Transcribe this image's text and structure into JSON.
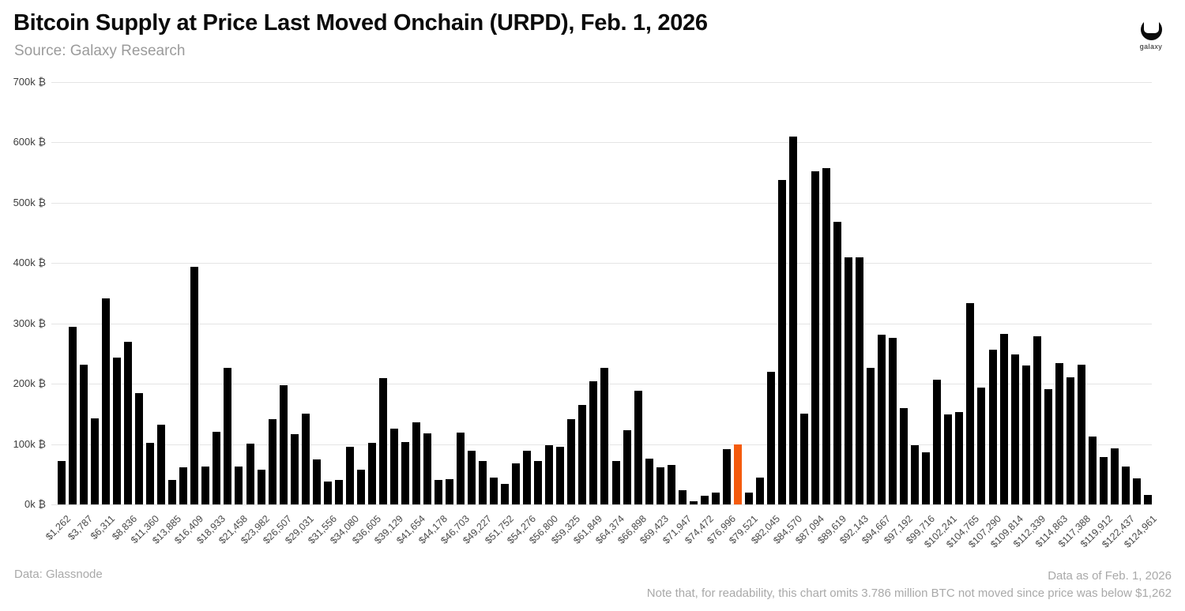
{
  "header": {
    "title": "Bitcoin Supply at Price Last Moved Onchain (URPD), Feb. 1, 2026",
    "subtitle": "Source: Galaxy Research"
  },
  "logo": {
    "label": "galaxy"
  },
  "footer": {
    "left": "Data: Glassnode",
    "right_line1": "Data as of Feb. 1, 2026",
    "right_line2": "Note that, for readability, this chart omits 3.786 million BTC not moved since price was below $1,262"
  },
  "chart_data": {
    "type": "bar",
    "title": "Bitcoin Supply at Price Last Moved Onchain (URPD), Feb. 1, 2026",
    "unit": "thousand BTC (k ₿)",
    "grid": true,
    "ylim_kbtc": [
      0,
      700
    ],
    "y_tick_labels": [
      "0k ₿",
      "100k ₿",
      "200k ₿",
      "300k ₿",
      "400k ₿",
      "500k ₿",
      "600k ₿",
      "700k ₿"
    ],
    "x_tick_labels": [
      "$1,262",
      "$3,787",
      "$6,311",
      "$8,836",
      "$11,360",
      "$13,885",
      "$16,409",
      "$18,933",
      "$21,458",
      "$23,982",
      "$26,507",
      "$29,031",
      "$31,556",
      "$34,080",
      "$36,605",
      "$39,129",
      "$41,654",
      "$44,178",
      "$46,703",
      "$49,227",
      "$51,752",
      "$54,276",
      "$56,800",
      "$59,325",
      "$61,849",
      "$64,374",
      "$66,898",
      "$69,423",
      "$71,947",
      "$74,472",
      "$76,996",
      "$79,521",
      "$82,045",
      "$84,570",
      "$87,094",
      "$89,619",
      "$92,143",
      "$94,667",
      "$97,192",
      "$99,716",
      "$102,241",
      "$104,765",
      "$107,290",
      "$109,814",
      "$112,339",
      "$114,863",
      "$117,388",
      "$119,912",
      "$122,437",
      "$124,961"
    ],
    "label_every_n_bars": 2,
    "values_kbtc": [
      72,
      294,
      231,
      143,
      341,
      243,
      270,
      185,
      102,
      132,
      41,
      62,
      394,
      63,
      120,
      227,
      63,
      101,
      57,
      141,
      197,
      117,
      151,
      75,
      38,
      40,
      96,
      57,
      102,
      209,
      126,
      103,
      136,
      118,
      40,
      42,
      119,
      89,
      72,
      45,
      34,
      68,
      89,
      72,
      98,
      96,
      141,
      165,
      204,
      226,
      72,
      123,
      188,
      76,
      62,
      65,
      23,
      5,
      15,
      20,
      92,
      99,
      19,
      44,
      220,
      538,
      610,
      151,
      552,
      558,
      468,
      410,
      410,
      227,
      281,
      276,
      159,
      98,
      87,
      207,
      149,
      153,
      334,
      194,
      256,
      282,
      249,
      230,
      279,
      191,
      234,
      211,
      231,
      112,
      79,
      93,
      63,
      43,
      16
    ],
    "bar_color": "#000000",
    "grid_color": "#e4e4e4",
    "highlight": {
      "index": 61,
      "color": "#F45B0D",
      "between_labels": [
        "$76,996",
        "$79,521"
      ]
    }
  }
}
